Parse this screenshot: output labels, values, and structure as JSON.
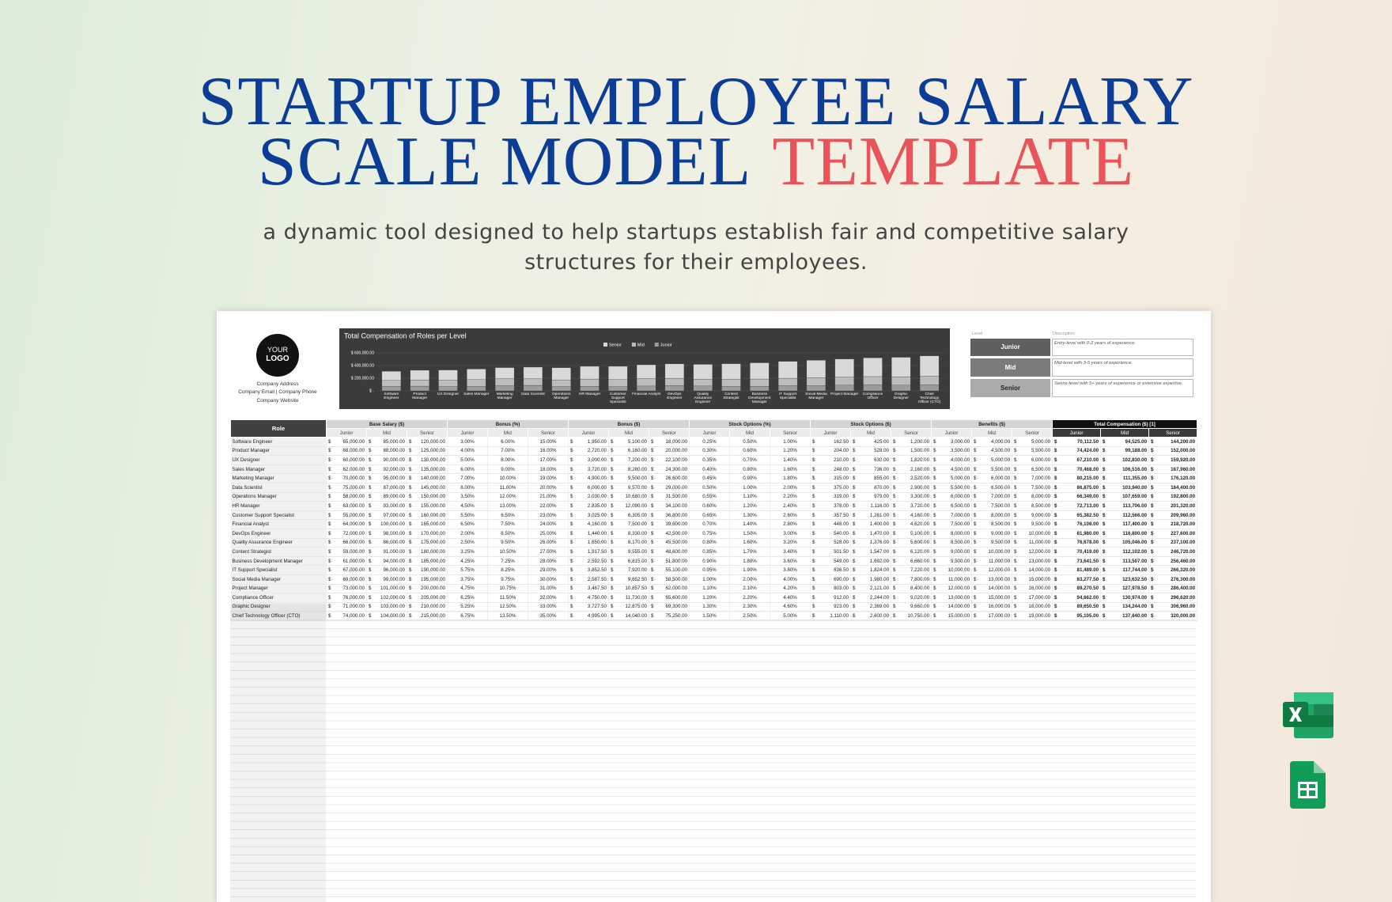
{
  "header": {
    "title_line1": "STARTUP EMPLOYEE SALARY",
    "title_line2": "SCALE MODEL",
    "title_accent": "TEMPLATE",
    "subtitle": "a dynamic tool designed to help startups establish fair and competitive salary structures for their employees."
  },
  "logo": {
    "line1": "YOUR",
    "line2": "LOGO"
  },
  "company": [
    "Company Address",
    "Company Email | Company Phone",
    "Company Website"
  ],
  "chart_data": {
    "type": "bar",
    "stacked": true,
    "title": "Total Compensation of Roles per Level",
    "categories": [
      "Software Engineer",
      "Product Manager",
      "UX Designer",
      "Sales Manager",
      "Marketing Manager",
      "Data Scientist",
      "Operations Manager",
      "HR Manager",
      "Customer Support Specialist",
      "Financial Analyst",
      "DevOps Engineer",
      "Quality Assurance Engineer",
      "Content Strategist",
      "Business Development Manager",
      "IT Support Specialist",
      "Social Media Manager",
      "Project Manager",
      "Compliance Officer",
      "Graphic Designer",
      "Chief Technology Officer (CTO)"
    ],
    "series": [
      {
        "name": "Senior",
        "color": "#d9d9d9",
        "values": [
          144200,
          152000,
          159920,
          167960,
          176120,
          184400,
          192800,
          201320,
          209960,
          218720,
          227600,
          237100,
          246720,
          256460,
          266320,
          276300,
          286400,
          296620,
          306960,
          320000
        ]
      },
      {
        "name": "Mid",
        "color": "#bdbdbd",
        "values": [
          94525,
          99188,
          102830,
          106516,
          111355,
          103940,
          107659,
          113706,
          112566,
          117400,
          116800,
          105046,
          112102,
          113507,
          117744,
          123632.5,
          127978.5,
          130974,
          134244,
          137640
        ]
      },
      {
        "name": "Junior",
        "color": "#9c9c9c",
        "values": [
          70112.5,
          74424,
          67210,
          70468,
          80215,
          86875,
          66349,
          72713,
          65382.5,
          76108,
          81980,
          76678,
          70419,
          73641.5,
          81489,
          83277.5,
          89270.5,
          94662,
          89650.5,
          95105
        ]
      }
    ],
    "ylim": [
      0,
      600000
    ],
    "yticks": [
      {
        "value": 0,
        "label": "$ -"
      },
      {
        "value": 200000,
        "label": "$ 200,000.00"
      },
      {
        "value": 400000,
        "label": "$ 400,000.00"
      },
      {
        "value": 600000,
        "label": "$ 600,000.00"
      }
    ],
    "grid": true,
    "legend": "top"
  },
  "levels": {
    "level_header": "Level",
    "description_header": "Description",
    "rows": [
      {
        "level": "Junior",
        "description": "Entry-level with 0-2 years of experience."
      },
      {
        "level": "Mid",
        "description": "Mid-level with 3-5 years of experience."
      },
      {
        "level": "Senior",
        "description": "Senior-level with 5+ years of experience or extensive expertise."
      }
    ]
  },
  "table": {
    "role_header": "Role",
    "groups": [
      "Base Salary ($)",
      "Bonus (%)",
      "Bonus ($)",
      "Stock Options (%)",
      "Stock Options ($)",
      "Benefits ($)",
      "Total Compensation ($) [1]"
    ],
    "sublevels": [
      "Junior",
      "Mid",
      "Senior"
    ],
    "currency_symbol": "$",
    "rows": [
      [
        "Software Engineer",
        "65,000.00",
        "85,000.00",
        "120,000.00",
        "3.00%",
        "6.00%",
        "15.00%",
        "1,950.00",
        "5,100.00",
        "18,000.00",
        "0.25%",
        "0.50%",
        "1.00%",
        "162.50",
        "425.00",
        "1,200.00",
        "3,000.00",
        "4,000.00",
        "5,000.00",
        "70,112.50",
        "94,525.00",
        "144,200.00"
      ],
      [
        "Product Manager",
        "68,000.00",
        "88,000.00",
        "125,000.00",
        "4.00%",
        "7.00%",
        "16.00%",
        "2,720.00",
        "6,160.00",
        "20,000.00",
        "0.30%",
        "0.60%",
        "1.20%",
        "204.00",
        "528.00",
        "1,500.00",
        "3,500.00",
        "4,500.00",
        "5,500.00",
        "74,424.00",
        "99,188.00",
        "152,000.00"
      ],
      [
        "UX Designer",
        "60,000.00",
        "90,000.00",
        "130,000.00",
        "5.00%",
        "8.00%",
        "17.00%",
        "3,000.00",
        "7,200.00",
        "22,100.00",
        "0.35%",
        "0.70%",
        "1.40%",
        "210.00",
        "630.00",
        "1,820.00",
        "4,000.00",
        "5,000.00",
        "6,000.00",
        "67,210.00",
        "102,830.00",
        "159,920.00"
      ],
      [
        "Sales Manager",
        "62,000.00",
        "92,000.00",
        "135,000.00",
        "6.00%",
        "9.00%",
        "18.00%",
        "3,720.00",
        "8,280.00",
        "24,300.00",
        "0.40%",
        "0.80%",
        "1.60%",
        "248.00",
        "736.00",
        "2,160.00",
        "4,500.00",
        "5,500.00",
        "6,500.00",
        "70,468.00",
        "106,516.00",
        "167,960.00"
      ],
      [
        "Marketing Manager",
        "70,000.00",
        "95,000.00",
        "140,000.00",
        "7.00%",
        "10.00%",
        "19.00%",
        "4,900.00",
        "9,500.00",
        "26,600.00",
        "0.45%",
        "0.90%",
        "1.80%",
        "315.00",
        "855.00",
        "2,520.00",
        "5,000.00",
        "6,000.00",
        "7,000.00",
        "80,215.00",
        "111,355.00",
        "176,120.00"
      ],
      [
        "Data Scientist",
        "75,000.00",
        "87,000.00",
        "145,000.00",
        "8.00%",
        "11.00%",
        "20.00%",
        "6,000.00",
        "9,570.00",
        "29,000.00",
        "0.50%",
        "1.00%",
        "2.00%",
        "375.00",
        "870.00",
        "2,900.00",
        "5,500.00",
        "6,500.00",
        "7,500.00",
        "86,875.00",
        "103,940.00",
        "184,400.00"
      ],
      [
        "Operations Manager",
        "58,000.00",
        "89,000.00",
        "150,000.00",
        "3.50%",
        "12.00%",
        "21.00%",
        "2,030.00",
        "10,680.00",
        "31,500.00",
        "0.55%",
        "1.10%",
        "2.20%",
        "319.00",
        "979.00",
        "3,300.00",
        "6,000.00",
        "7,000.00",
        "8,000.00",
        "66,349.00",
        "107,659.00",
        "192,800.00"
      ],
      [
        "HR Manager",
        "63,000.00",
        "93,000.00",
        "155,000.00",
        "4.50%",
        "13.00%",
        "22.00%",
        "2,835.00",
        "12,090.00",
        "34,100.00",
        "0.60%",
        "1.20%",
        "2.40%",
        "378.00",
        "1,116.00",
        "3,720.00",
        "6,500.00",
        "7,500.00",
        "8,500.00",
        "72,713.00",
        "113,706.00",
        "201,320.00"
      ],
      [
        "Customer Support Specialist",
        "55,000.00",
        "97,000.00",
        "160,000.00",
        "5.50%",
        "6.50%",
        "23.00%",
        "3,025.00",
        "6,305.00",
        "36,800.00",
        "0.65%",
        "1.30%",
        "2.60%",
        "357.50",
        "1,261.00",
        "4,160.00",
        "7,000.00",
        "8,000.00",
        "9,000.00",
        "65,382.50",
        "112,566.00",
        "209,960.00"
      ],
      [
        "Financial Analyst",
        "64,000.00",
        "100,000.00",
        "165,000.00",
        "6.50%",
        "7.50%",
        "24.00%",
        "4,160.00",
        "7,500.00",
        "39,600.00",
        "0.70%",
        "1.40%",
        "2.80%",
        "448.00",
        "1,400.00",
        "4,620.00",
        "7,500.00",
        "8,500.00",
        "9,500.00",
        "76,108.00",
        "117,400.00",
        "218,720.00"
      ],
      [
        "DevOps Engineer",
        "72,000.00",
        "98,000.00",
        "170,000.00",
        "2.00%",
        "8.50%",
        "25.00%",
        "1,440.00",
        "8,330.00",
        "42,500.00",
        "0.75%",
        "1.50%",
        "3.00%",
        "540.00",
        "1,470.00",
        "5,100.00",
        "8,000.00",
        "9,000.00",
        "10,000.00",
        "81,980.00",
        "116,800.00",
        "227,600.00"
      ],
      [
        "Quality Assurance Engineer",
        "66,000.00",
        "86,000.00",
        "175,000.00",
        "2.50%",
        "9.50%",
        "26.00%",
        "1,650.00",
        "8,170.00",
        "45,500.00",
        "0.80%",
        "1.60%",
        "3.20%",
        "528.00",
        "1,376.00",
        "5,600.00",
        "8,500.00",
        "9,500.00",
        "11,000.00",
        "76,678.00",
        "105,046.00",
        "237,100.00"
      ],
      [
        "Content Strategist",
        "59,000.00",
        "91,000.00",
        "180,000.00",
        "3.25%",
        "10.50%",
        "27.00%",
        "1,917.50",
        "9,555.00",
        "48,600.00",
        "0.85%",
        "1.70%",
        "3.40%",
        "501.50",
        "1,547.00",
        "6,120.00",
        "9,000.00",
        "10,000.00",
        "12,000.00",
        "70,419.00",
        "112,102.00",
        "246,720.00"
      ],
      [
        "Business Development Manager",
        "61,000.00",
        "94,000.00",
        "185,000.00",
        "4.25%",
        "7.25%",
        "28.00%",
        "2,592.50",
        "6,815.00",
        "51,800.00",
        "0.90%",
        "1.80%",
        "3.60%",
        "549.00",
        "1,692.00",
        "6,660.00",
        "9,500.00",
        "11,000.00",
        "13,000.00",
        "73,641.50",
        "113,507.00",
        "256,460.00"
      ],
      [
        "IT Support Specialist",
        "67,000.00",
        "96,000.00",
        "190,000.00",
        "5.75%",
        "8.25%",
        "29.00%",
        "3,852.50",
        "7,920.00",
        "55,100.00",
        "0.95%",
        "1.90%",
        "3.80%",
        "636.50",
        "1,824.00",
        "7,220.00",
        "10,000.00",
        "12,000.00",
        "14,000.00",
        "81,489.00",
        "117,744.00",
        "266,320.00"
      ],
      [
        "Social Media Manager",
        "69,000.00",
        "99,000.00",
        "195,000.00",
        "3.75%",
        "9.75%",
        "30.00%",
        "2,587.50",
        "9,652.50",
        "58,500.00",
        "1.00%",
        "2.00%",
        "4.00%",
        "690.00",
        "1,980.00",
        "7,800.00",
        "11,000.00",
        "13,000.00",
        "15,000.00",
        "83,277.50",
        "123,632.50",
        "276,300.00"
      ],
      [
        "Project Manager",
        "73,000.00",
        "101,000.00",
        "200,000.00",
        "4.75%",
        "10.75%",
        "31.00%",
        "3,467.50",
        "10,857.50",
        "62,000.00",
        "1.10%",
        "2.10%",
        "4.20%",
        "803.00",
        "2,121.00",
        "8,400.00",
        "12,000.00",
        "14,000.00",
        "16,000.00",
        "89,270.50",
        "127,978.50",
        "286,400.00"
      ],
      [
        "Compliance Officer",
        "76,000.00",
        "102,000.00",
        "205,000.00",
        "6.25%",
        "11.50%",
        "32.00%",
        "4,750.00",
        "11,730.00",
        "65,600.00",
        "1.20%",
        "2.20%",
        "4.40%",
        "912.00",
        "2,244.00",
        "9,020.00",
        "13,000.00",
        "15,000.00",
        "17,000.00",
        "94,662.00",
        "130,974.00",
        "296,620.00"
      ],
      [
        "Graphic Designer",
        "71,000.00",
        "103,000.00",
        "210,000.00",
        "5.25%",
        "12.50%",
        "33.00%",
        "3,727.50",
        "12,875.00",
        "69,300.00",
        "1.30%",
        "2.30%",
        "4.60%",
        "923.00",
        "2,369.00",
        "9,660.00",
        "14,000.00",
        "16,000.00",
        "18,000.00",
        "89,650.50",
        "134,244.00",
        "306,960.00"
      ],
      [
        "Chief Technology Officer (CTO)",
        "74,000.00",
        "104,000.00",
        "215,000.00",
        "6.75%",
        "13.50%",
        "35.00%",
        "4,995.00",
        "14,040.00",
        "75,250.00",
        "1.50%",
        "2.50%",
        "5.00%",
        "1,110.00",
        "2,600.00",
        "10,750.00",
        "15,000.00",
        "17,000.00",
        "19,000.00",
        "95,105.00",
        "137,640.00",
        "320,000.00"
      ]
    ]
  }
}
